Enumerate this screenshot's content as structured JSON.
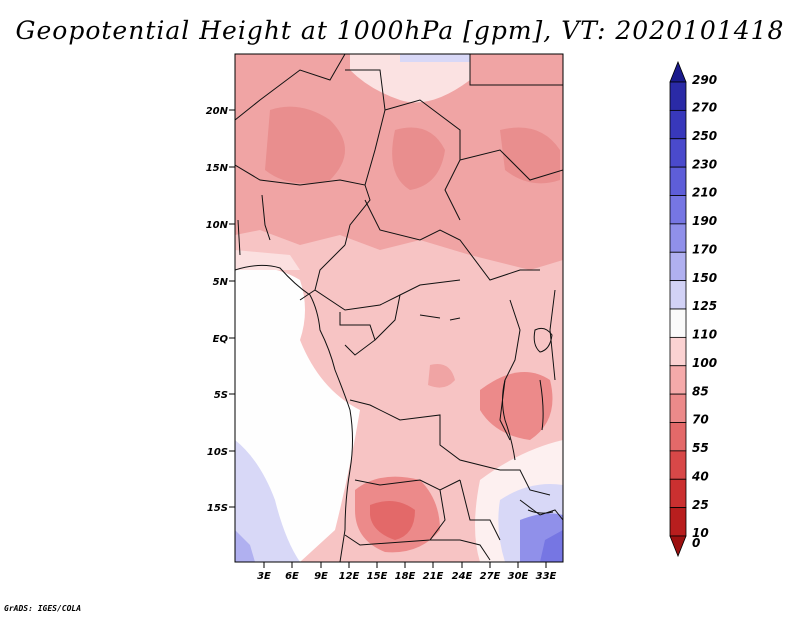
{
  "title": "Geopotential Height at 1000hPa [gpm], VT: 2020101418",
  "credit": "GrADS: IGES/COLA",
  "map": {
    "lat_labels": [
      "20N",
      "15N",
      "10N",
      "5N",
      "EQ",
      "5S",
      "10S",
      "15S"
    ],
    "lon_labels": [
      "3E",
      "6E",
      "9E",
      "12E",
      "15E",
      "18E",
      "21E",
      "24E",
      "27E",
      "30E",
      "33E"
    ]
  },
  "colorbar": {
    "labels": [
      "290",
      "270",
      "250",
      "230",
      "210",
      "190",
      "170",
      "150",
      "125",
      "110",
      "100",
      "85",
      "70",
      "55",
      "40",
      "25",
      "10",
      "0"
    ],
    "colors": [
      "#1a1a8c",
      "#2a2aa6",
      "#3838bb",
      "#4a4acc",
      "#5e5ed9",
      "#7676e3",
      "#9090ea",
      "#b0b0f0",
      "#d2d2f6",
      "#fafafa",
      "#fbd2d2",
      "#f5aaaa",
      "#ec8a8a",
      "#e36969",
      "#d84848",
      "#cb3030",
      "#b81e1e",
      "#9c1010"
    ]
  }
}
